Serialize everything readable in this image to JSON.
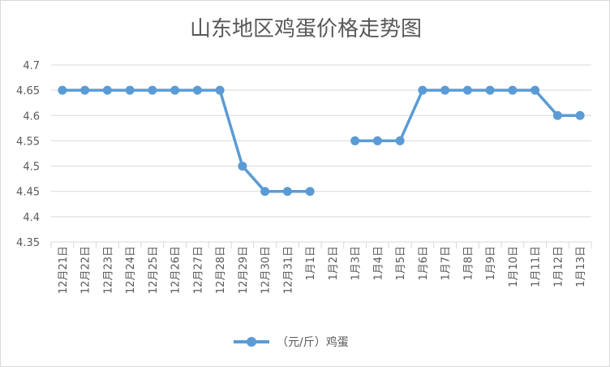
{
  "chart_data": {
    "type": "line",
    "title": "山东地区鸡蛋价格走势图",
    "xlabel": "",
    "ylabel": "",
    "categories": [
      "12月21日",
      "12月22日",
      "12月23日",
      "12月24日",
      "12月25日",
      "12月26日",
      "12月27日",
      "12月28日",
      "12月29日",
      "12月30日",
      "12月31日",
      "1月1日",
      "1月2日",
      "1月3日",
      "1月4日",
      "1月5日",
      "1月6日",
      "1月7日",
      "1月8日",
      "1月9日",
      "1月10日",
      "1月11日",
      "1月12日",
      "1月13日"
    ],
    "series": [
      {
        "name": "（元/斤）鸡蛋",
        "color": "#5b9bd5",
        "values": [
          4.65,
          4.65,
          4.65,
          4.65,
          4.65,
          4.65,
          4.65,
          4.65,
          4.5,
          4.45,
          4.45,
          4.45,
          null,
          4.55,
          4.55,
          4.55,
          4.65,
          4.65,
          4.65,
          4.65,
          4.65,
          4.65,
          4.6,
          4.6
        ]
      }
    ],
    "ylim": [
      4.35,
      4.7
    ],
    "yticks": [
      "4.7",
      "4.65",
      "4.6",
      "4.55",
      "4.5",
      "4.45",
      "4.4",
      "4.35"
    ],
    "grid": true,
    "legend": "bottom"
  }
}
